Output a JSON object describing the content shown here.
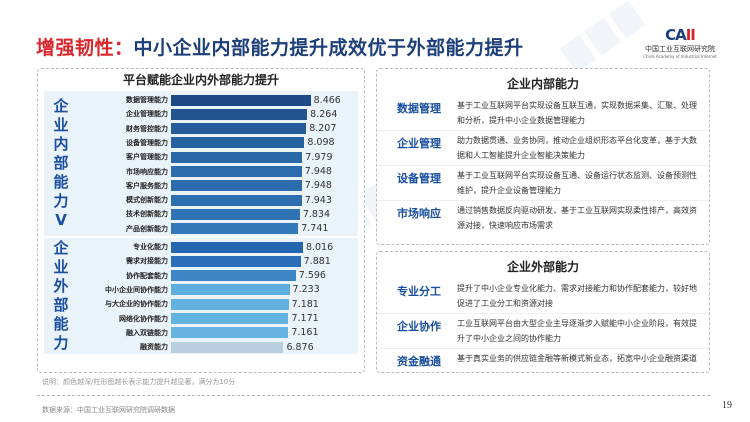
{
  "title": {
    "highlight": "增强韧性：",
    "main": "中小企业内部能力提升成效优于外部能力提升"
  },
  "logo": {
    "mark": "CAII",
    "cn": "中国工业互联网研究院",
    "en": "China Academy of Industrial Internet"
  },
  "chart_data": {
    "type": "bar",
    "title": "平台赋能企业内外部能力提升",
    "groups": [
      {
        "name": "企业内部能力",
        "label_chars": [
          "企",
          "业",
          "内",
          "部",
          "能",
          "力",
          "V"
        ],
        "categories": [
          "数据管理能力",
          "企业管理能力",
          "财务管控能力",
          "设备管理能力",
          "客户管理能力",
          "市场响应能力",
          "客户服务能力",
          "模式创新能力",
          "技术创新能力",
          "产品创新能力"
        ],
        "values": [
          8.466,
          8.264,
          8.207,
          8.098,
          7.979,
          7.948,
          7.948,
          7.943,
          7.834,
          7.741
        ],
        "colors": [
          "#1d4a86",
          "#21538f",
          "#245b98",
          "#2762a0",
          "#2a68a8",
          "#2c6cad",
          "#2c6cad",
          "#2d6eaf",
          "#3073b4",
          "#3378b9"
        ]
      },
      {
        "name": "企业外部能力",
        "label_chars": [
          "企",
          "业",
          "外",
          "部",
          "能",
          "力"
        ],
        "categories": [
          "专业化能力",
          "需求对接能力",
          "协作配套能力",
          "中小企业间协作能力",
          "与大企业的协作能力",
          "网络化协作能力",
          "融入双链能力",
          "融资能力"
        ],
        "values": [
          8.016,
          7.881,
          7.596,
          7.233,
          7.181,
          7.171,
          7.161,
          6.876
        ],
        "colors": [
          "#2566b0",
          "#2b6fb8",
          "#3d86c6",
          "#5eaedf",
          "#62b1e0",
          "#64b3e1",
          "#66b4e2",
          "#b8cfe0"
        ]
      }
    ],
    "note": "说明：颜色越深/柱形图越长表示能力提升越显著，满分为10分"
  },
  "internal": {
    "title": "企业内部能力",
    "items": [
      {
        "k": "数据管理",
        "v": "基于工业互联网平台实现设备互联互通，实现数据采集、汇聚、处理和分析，提升中小企业数据管理能力"
      },
      {
        "k": "企业管理",
        "v": "助力数据贯通、业务协同，推动企业组织形态平台化变革，基于大数据和人工智能提升企业智能决策能力"
      },
      {
        "k": "设备管理",
        "v": "基于工业互联网平台实现设备互通、设备运行状态监测、设备预测性维护，提升企业设备管理能力"
      },
      {
        "k": "市场响应",
        "v": "通过销售数据反向驱动研发，基于工业互联网实现柔性排产，高效资源对接，快速响应市场需求"
      }
    ]
  },
  "external": {
    "title": "企业外部能力",
    "items": [
      {
        "k": "专业分工",
        "v": "提升了中小企业专业化能力、需求对接能力和协作配套能力，较好地促进了工业分工和资源对接"
      },
      {
        "k": "企业协作",
        "v": "工业互联网平台由大型企业主导逐渐步入赋能中小企业阶段，有效提升了中小企业之间的协作能力"
      },
      {
        "k": "资金融通",
        "v": "基于真实业务的供应链金融等新模式新业态，拓宽中小企业融资渠道"
      }
    ]
  },
  "source": "数据来源：中国工业互联网研究院调研数据",
  "page": "19"
}
